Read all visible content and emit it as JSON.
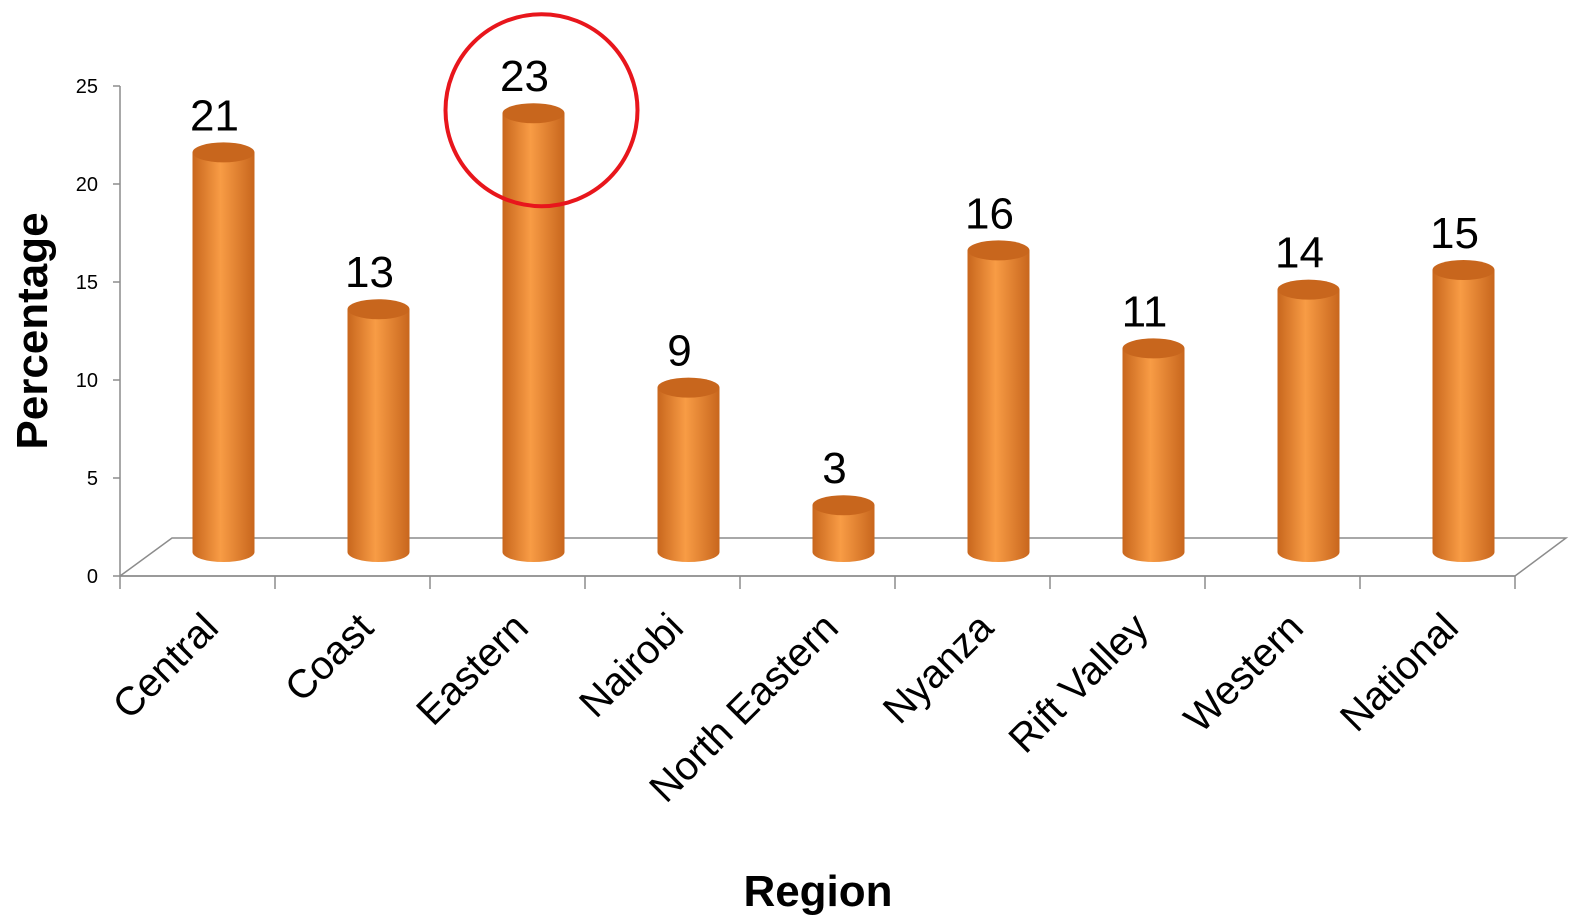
{
  "chart_data": {
    "type": "bar",
    "title": "",
    "xlabel": "Region",
    "ylabel": "Percentage",
    "categories": [
      "Central",
      "Coast",
      "Eastern",
      "Nairobi",
      "North Eastern",
      "Nyanza",
      "Rift Valley",
      "Western",
      "National"
    ],
    "values": [
      21,
      13,
      23,
      9,
      3,
      16,
      11,
      14,
      15
    ],
    "data_labels": [
      "21",
      "13",
      "23",
      "9",
      "3",
      "16",
      "11",
      "14",
      "15"
    ],
    "ylim": [
      0,
      25
    ],
    "yticks": [
      0,
      5,
      10,
      15,
      20,
      25
    ],
    "grid": false,
    "legend": "none",
    "style": "3d-cylinder",
    "highlight": {
      "category": "Eastern",
      "shape": "circle",
      "color": "#e8161c"
    },
    "colors": {
      "bar": "#f89c45",
      "bar_dark": "#c8661d",
      "axis": "#8c8c8c"
    }
  }
}
